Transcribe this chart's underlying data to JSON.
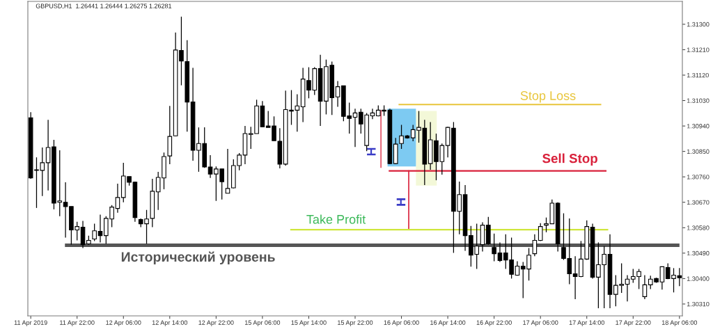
{
  "chart_data": {
    "type": "candlestick",
    "title": "GBPUSD,H1  1.26441 1.26444 1.26275 1.26281",
    "categories": [
      "11 Apr 2019",
      null,
      null,
      null,
      null,
      null,
      null,
      null,
      "11 Apr 22:00",
      null,
      null,
      null,
      null,
      null,
      null,
      null,
      "12 Apr 06:00",
      null,
      null,
      null,
      null,
      null,
      null,
      null,
      "12 Apr 14:00",
      null,
      null,
      null,
      null,
      null,
      null,
      null,
      "12 Apr 22:00",
      null,
      null,
      null,
      null,
      null,
      null,
      null,
      "15 Apr 06:00",
      null,
      null,
      null,
      null,
      null,
      null,
      null,
      "15 Apr 14:00",
      null,
      null,
      null,
      null,
      null,
      null,
      null,
      "15 Apr 22:00",
      null,
      null,
      null,
      null,
      null,
      null,
      null,
      "16 Apr 06:00",
      null,
      null,
      null,
      null,
      null,
      null,
      null,
      "16 Apr 14:00",
      null,
      null,
      null,
      null,
      null,
      null,
      null,
      "16 Apr 22:00",
      null,
      null,
      null,
      null,
      null,
      null,
      null,
      "17 Apr 06:00",
      null,
      null,
      null,
      null,
      null,
      null,
      null,
      "17 Apr 14:00",
      null,
      null,
      null,
      null,
      null,
      null,
      null,
      "17 Apr 22:00",
      null,
      null,
      null,
      null,
      null,
      null,
      null,
      "18 Apr 06:00"
    ],
    "ohlc": [
      [
        1.30969,
        1.30989,
        1.30753,
        1.30756
      ],
      [
        1.30783,
        1.30829,
        1.3065,
        1.30785
      ],
      [
        1.30783,
        1.30864,
        1.30692,
        1.3081
      ],
      [
        1.3081,
        1.30962,
        1.30712,
        1.30864
      ],
      [
        1.30866,
        1.30891,
        1.30645,
        1.30667
      ],
      [
        1.3067,
        1.30854,
        1.30621,
        1.30675
      ],
      [
        1.3067,
        1.30741,
        1.30545,
        1.30655
      ],
      [
        1.30655,
        1.30655,
        1.3052,
        1.30572
      ],
      [
        1.30572,
        1.30601,
        1.30535,
        1.30584
      ],
      [
        1.30582,
        1.30604,
        1.30508,
        1.3052
      ],
      [
        1.30523,
        1.30552,
        1.3052,
        1.30535
      ],
      [
        1.3054,
        1.30594,
        1.30533,
        1.30569
      ],
      [
        1.30567,
        1.30626,
        1.30528,
        1.30552
      ],
      [
        1.30552,
        1.30621,
        1.30523,
        1.30613
      ],
      [
        1.30611,
        1.3066,
        1.30582,
        1.30653
      ],
      [
        1.30648,
        1.30736,
        1.30633,
        1.30687
      ],
      [
        1.30687,
        1.3081,
        1.3067,
        1.30763
      ],
      [
        1.30761,
        1.30761,
        1.30729,
        1.30741
      ],
      [
        1.30741,
        1.30743,
        1.30601,
        1.30616
      ],
      [
        1.30609,
        1.30613,
        1.30582,
        1.30594
      ],
      [
        1.30594,
        1.30643,
        1.30523,
        1.30611
      ],
      [
        1.30613,
        1.30753,
        1.30582,
        1.30709
      ],
      [
        1.30707,
        1.30778,
        1.30643,
        1.30758
      ],
      [
        1.30756,
        1.30846,
        1.30716,
        1.30832
      ],
      [
        1.30834,
        1.31011,
        1.30805,
        1.30903
      ],
      [
        1.30905,
        1.31271,
        1.30903,
        1.31209
      ],
      [
        1.31207,
        1.31327,
        1.31084,
        1.3117
      ],
      [
        1.31168,
        1.31244,
        1.3092,
        1.31025
      ],
      [
        1.31025,
        1.31146,
        1.30817,
        1.30854
      ],
      [
        1.30854,
        1.30935,
        1.30778,
        1.30878
      ],
      [
        1.30878,
        1.30935,
        1.30792,
        1.30795
      ],
      [
        1.30795,
        1.30837,
        1.30756,
        1.3077
      ],
      [
        1.3077,
        1.30797,
        1.30675,
        1.30788
      ],
      [
        1.30788,
        1.30788,
        1.3068,
        1.30743
      ],
      [
        1.30702,
        1.30859,
        1.30702,
        1.30719
      ],
      [
        1.30721,
        1.30822,
        1.30719,
        1.308
      ],
      [
        1.308,
        1.30844,
        1.30783,
        1.30837
      ],
      [
        1.30837,
        1.3094,
        1.30805,
        1.30913
      ],
      [
        1.3091,
        1.30937,
        1.30859,
        1.30913
      ],
      [
        1.30913,
        1.31033,
        1.30913,
        1.31011
      ],
      [
        1.31011,
        1.31028,
        1.30937,
        1.30937
      ],
      [
        1.3094,
        1.30993,
        1.30935,
        1.30935
      ],
      [
        1.3094,
        1.30974,
        1.30888,
        1.30888
      ],
      [
        1.30886,
        1.30932,
        1.3079,
        1.30805
      ],
      [
        1.30805,
        1.31065,
        1.308,
        1.30998
      ],
      [
        1.30993,
        1.31067,
        1.30944,
        1.30996
      ],
      [
        1.30996,
        1.31052,
        1.3092,
        1.31011
      ],
      [
        1.31008,
        1.31146,
        1.30954,
        1.31106
      ],
      [
        1.31101,
        1.31148,
        1.31038,
        1.31067
      ],
      [
        1.31067,
        1.31148,
        1.3105,
        1.31143
      ],
      [
        1.31143,
        1.31192,
        1.3094,
        1.31028
      ],
      [
        1.31028,
        1.31175,
        1.30981,
        1.3115
      ],
      [
        1.31155,
        1.31168,
        1.30979,
        1.3104
      ],
      [
        1.31043,
        1.31099,
        1.31008,
        1.31079
      ],
      [
        1.31082,
        1.31082,
        1.30957,
        1.30974
      ],
      [
        1.30976,
        1.31023,
        1.30913,
        1.30967
      ],
      [
        1.30971,
        1.31001,
        1.30866,
        1.30986
      ],
      [
        1.30989,
        1.31001,
        1.30913,
        1.30947
      ],
      [
        1.30871,
        1.30986,
        1.30851,
        1.30979
      ],
      [
        1.30976,
        1.31001,
        1.30964,
        1.30986
      ],
      [
        1.30976,
        1.31013,
        1.30974,
        1.30996
      ],
      [
        1.30993,
        1.31013,
        1.30976,
        1.30996
      ],
      [
        1.30996,
        1.31001,
        1.30805,
        1.30807
      ],
      [
        1.30807,
        1.30898,
        1.30805,
        1.30876
      ],
      [
        1.30878,
        1.30944,
        1.30859,
        1.30905
      ],
      [
        1.30905,
        1.30908,
        1.30895,
        1.30898
      ],
      [
        1.30898,
        1.30944,
        1.30886,
        1.30927
      ],
      [
        1.30925,
        1.30993,
        1.30881,
        1.30935
      ],
      [
        1.30932,
        1.30962,
        1.30731,
        1.30805
      ],
      [
        1.30807,
        1.30954,
        1.30785,
        1.30891
      ],
      [
        1.30888,
        1.30913,
        1.30748,
        1.30814
      ],
      [
        1.30814,
        1.30878,
        1.30768,
        1.30871
      ],
      [
        1.30871,
        1.30937,
        1.30829,
        1.30935
      ],
      [
        1.30932,
        1.30954,
        1.30491,
        1.30638
      ],
      [
        1.30638,
        1.30743,
        1.30557,
        1.30697
      ],
      [
        1.30697,
        1.30731,
        1.30498,
        1.30552
      ],
      [
        1.30552,
        1.30586,
        1.30442,
        1.30483
      ],
      [
        1.30486,
        1.30594,
        1.30434,
        1.30515
      ],
      [
        1.3052,
        1.30599,
        1.30496,
        1.30589
      ],
      [
        1.30589,
        1.30618,
        1.3052,
        1.30523
      ],
      [
        1.3051,
        1.30559,
        1.30461,
        1.30488
      ],
      [
        1.30491,
        1.30528,
        1.30459,
        1.30464
      ],
      [
        1.30491,
        1.30557,
        1.30434,
        1.30466
      ],
      [
        1.30466,
        1.30545,
        1.304,
        1.30415
      ],
      [
        1.30412,
        1.30461,
        1.3041,
        1.30444
      ],
      [
        1.30444,
        1.30459,
        1.30331,
        1.30434
      ],
      [
        1.30434,
        1.30508,
        1.30393,
        1.30483
      ],
      [
        1.30488,
        1.30557,
        1.30479,
        1.30535
      ],
      [
        1.30535,
        1.30596,
        1.30533,
        1.30584
      ],
      [
        1.30589,
        1.30616,
        1.30564,
        1.30594
      ],
      [
        1.30594,
        1.3068,
        1.30594,
        1.30667
      ],
      [
        1.30667,
        1.3067,
        1.30496,
        1.30523
      ],
      [
        1.3051,
        1.30631,
        1.30466,
        1.30471
      ],
      [
        1.30471,
        1.30613,
        1.3038,
        1.30417
      ],
      [
        1.30417,
        1.30479,
        1.30327,
        1.30407
      ],
      [
        1.30407,
        1.30533,
        1.30405,
        1.30469
      ],
      [
        1.30469,
        1.30606,
        1.30466,
        1.30584
      ],
      [
        1.30582,
        1.30594,
        1.304,
        1.30405
      ],
      [
        1.30405,
        1.30528,
        1.30295,
        1.30449
      ],
      [
        1.30449,
        1.30515,
        1.30295,
        1.30486
      ],
      [
        1.30486,
        1.30557,
        1.30295,
        1.30344
      ],
      [
        1.30344,
        1.30412,
        1.30302,
        1.30376
      ],
      [
        1.30376,
        1.30454,
        1.30349,
        1.3038
      ],
      [
        1.3038,
        1.30412,
        1.30319,
        1.30398
      ],
      [
        1.30398,
        1.30434,
        1.30385,
        1.30407
      ],
      [
        1.30407,
        1.30434,
        1.30363,
        1.30425
      ],
      [
        1.30336,
        1.30412,
        1.30327,
        1.30378
      ],
      [
        1.30378,
        1.3041,
        1.30363,
        1.30398
      ],
      [
        1.304,
        1.30403,
        1.30385,
        1.30388
      ],
      [
        1.30388,
        1.30442,
        1.30361,
        1.30442
      ],
      [
        1.30439,
        1.30454,
        1.30398,
        1.304
      ],
      [
        1.304,
        1.30437,
        1.30351,
        1.30412
      ],
      [
        1.3041,
        1.30437,
        1.30373,
        1.30403
      ]
    ],
    "ylim": [
      1.30268,
      1.31381
    ],
    "yticks": [
      {
        "value": 1.3031,
        "label": "1.30310"
      },
      {
        "value": 1.304,
        "label": "1.30400"
      },
      {
        "value": 1.3049,
        "label": "1.30490"
      },
      {
        "value": 1.3058,
        "label": "1.30580"
      },
      {
        "value": 1.3067,
        "label": "1.30670"
      },
      {
        "value": 1.3076,
        "label": "1.30760"
      },
      {
        "value": 1.3085,
        "label": "1.30850"
      },
      {
        "value": 1.3094,
        "label": "1.30940"
      },
      {
        "value": 1.3103,
        "label": "1.31030"
      },
      {
        "value": 1.3112,
        "label": "1.31120"
      },
      {
        "value": 1.3121,
        "label": "1.31210"
      },
      {
        "value": 1.313,
        "label": "1.31300"
      }
    ],
    "ref_lines": [
      {
        "axis": "y",
        "value": 1.31016,
        "label": "Stop Loss",
        "color": "#e8c53a"
      },
      {
        "axis": "y",
        "value": 1.30781,
        "label": "Sell Stop",
        "color": "#d9213b"
      },
      {
        "axis": "y",
        "value": 1.30573,
        "label": "Take Profit",
        "color": "#cfe63c"
      },
      {
        "axis": "y",
        "value": 1.30518,
        "label": "Исторический уровень",
        "color": "#555555"
      }
    ],
    "annotations": [
      "H",
      "H"
    ]
  }
}
